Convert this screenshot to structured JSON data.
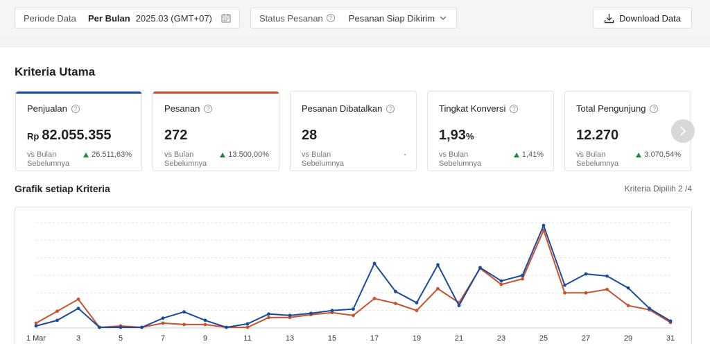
{
  "filters": {
    "period": {
      "label": "Periode Data",
      "mode": "Per Bulan",
      "value": "2025.03 (GMT+07)"
    },
    "status": {
      "label": "Status Pesanan",
      "value": "Pesanan Siap Dikirim"
    },
    "download_label": "Download Data"
  },
  "section_title": "Kriteria Utama",
  "kpis": [
    {
      "name": "Penjualan",
      "prefix": "Rp",
      "value": "82.055.355",
      "suffix": "",
      "compare": "vs Bulan Sebelumnya",
      "change": "26.511,63%",
      "accent": "#1a4a9c"
    },
    {
      "name": "Pesanan",
      "prefix": "",
      "value": "272",
      "suffix": "",
      "compare": "vs Bulan Sebelumnya",
      "change": "13.500,00%",
      "accent": "#c9512b"
    },
    {
      "name": "Pesanan Dibatalkan",
      "prefix": "",
      "value": "28",
      "suffix": "",
      "compare": "vs Bulan Sebelumnya",
      "change": "-",
      "accent": ""
    },
    {
      "name": "Tingkat Konversi",
      "prefix": "",
      "value": "1,93",
      "suffix": "%",
      "compare": "vs Bulan Sebelumnya",
      "change": "1,41%",
      "accent": ""
    },
    {
      "name": "Total Pengunjung",
      "prefix": "",
      "value": "12.270",
      "suffix": "",
      "compare": "vs Bulan Sebelumnya",
      "change": "3.070,54%",
      "accent": ""
    }
  ],
  "chart_section": {
    "title": "Grafik setiap Kriteria",
    "selected": "Kriteria Dipilih 2 /4"
  },
  "chart_data": {
    "type": "line",
    "x": [
      1,
      2,
      3,
      4,
      5,
      6,
      7,
      8,
      9,
      10,
      11,
      12,
      13,
      14,
      15,
      16,
      17,
      18,
      19,
      20,
      21,
      22,
      23,
      24,
      25,
      26,
      27,
      28,
      29,
      30,
      31
    ],
    "x_tick_labels": [
      "1 Mar",
      "3",
      "5",
      "7",
      "9",
      "11",
      "13",
      "15",
      "17",
      "19",
      "21",
      "23",
      "25",
      "27",
      "29",
      "31"
    ],
    "grid": true,
    "series": [
      {
        "color": "#1a4a9c",
        "values": [
          3,
          11,
          28,
          1,
          1,
          1,
          14,
          23,
          11,
          1,
          6,
          20,
          18,
          21,
          25,
          27,
          92,
          52,
          36,
          90,
          32,
          86,
          67,
          75,
          146,
          61,
          77,
          74,
          57,
          28,
          10
        ]
      },
      {
        "color": "#c9512b",
        "values": [
          7,
          24,
          41,
          1,
          3,
          1,
          7,
          5,
          5,
          1,
          1,
          15,
          15,
          19,
          22,
          18,
          42,
          35,
          25,
          56,
          36,
          85,
          62,
          70,
          139,
          50,
          50,
          55,
          32,
          26,
          8
        ]
      }
    ]
  }
}
